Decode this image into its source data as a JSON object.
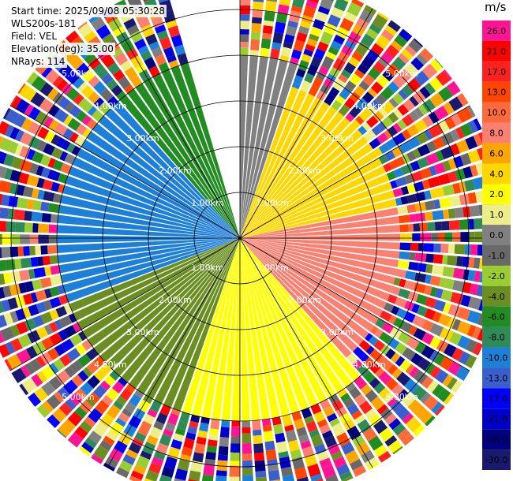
{
  "header": {
    "start_time": "Start time: 2025/09/08 05:30:28",
    "instrument": "WLS200s-181",
    "field": "Field: VEL",
    "elevation": "Elevation(deg): 35.00",
    "nrays": "NRays: 114"
  },
  "colorbar": {
    "unit": "m/s",
    "levels": [
      {
        "label": "26.0",
        "color": "#ff1493"
      },
      {
        "label": "21.0",
        "color": "#ff0000"
      },
      {
        "label": "17.0",
        "color": "#ff2020"
      },
      {
        "label": "13.0",
        "color": "#ff4500"
      },
      {
        "label": "10.0",
        "color": "#ff6a3a"
      },
      {
        "label": "8.0",
        "color": "#fa8072"
      },
      {
        "label": "6.0",
        "color": "#ffa500"
      },
      {
        "label": "4.0",
        "color": "#ffd700"
      },
      {
        "label": "2.0",
        "color": "#ffff00"
      },
      {
        "label": "1.0",
        "color": "#eeee88"
      },
      {
        "label": "0.0",
        "color": "#808080"
      },
      {
        "label": "-1.0",
        "color": "#696969"
      },
      {
        "label": "-2.0",
        "color": "#9acd32"
      },
      {
        "label": "-4.0",
        "color": "#6b8e23"
      },
      {
        "label": "-6.0",
        "color": "#228b22"
      },
      {
        "label": "-8.0",
        "color": "#2e8b57"
      },
      {
        "label": "-10.0",
        "color": "#1e7fd8"
      },
      {
        "label": "-13.0",
        "color": "#3a5fcd"
      },
      {
        "label": "-17.0",
        "color": "#0000ff"
      },
      {
        "label": "-21.0",
        "color": "#0000cd"
      },
      {
        "label": "-26.0",
        "color": "#000080"
      },
      {
        "label": "-30.0",
        "color": "#191970"
      }
    ]
  },
  "chart_data": {
    "type": "heatmap",
    "projection": "polar PPI scan",
    "field": "VEL",
    "elevation_deg": 35.0,
    "n_rays": 114,
    "range_rings_km": [
      "1.00km",
      "2.00km",
      "3.00km",
      "4.00km",
      "5.00km"
    ],
    "max_range_km": 5.8,
    "missing_sector_deg": [
      -15,
      0
    ],
    "regions": [
      {
        "azimuth_deg": [
          0,
          20
        ],
        "range_km": [
          0,
          5.8
        ],
        "value": 0.5
      },
      {
        "azimuth_deg": [
          20,
          80
        ],
        "range_km": [
          0,
          3.5
        ],
        "value": 4.0
      },
      {
        "azimuth_deg": [
          80,
          140
        ],
        "range_km": [
          0,
          3.5
        ],
        "value": 8.0
      },
      {
        "azimuth_deg": [
          140,
          200
        ],
        "range_km": [
          0,
          4.0
        ],
        "value": 2.0
      },
      {
        "azimuth_deg": [
          200,
          250
        ],
        "range_km": [
          0,
          4.0
        ],
        "value": -3.0
      },
      {
        "azimuth_deg": [
          250,
          320
        ],
        "range_km": [
          0,
          4.0
        ],
        "value": -10.0
      },
      {
        "azimuth_deg": [
          320,
          345
        ],
        "range_km": [
          0,
          5.8
        ],
        "value": -6.0
      }
    ],
    "outer_noise_range_km": [
      4.0,
      5.8
    ],
    "grid": true
  }
}
